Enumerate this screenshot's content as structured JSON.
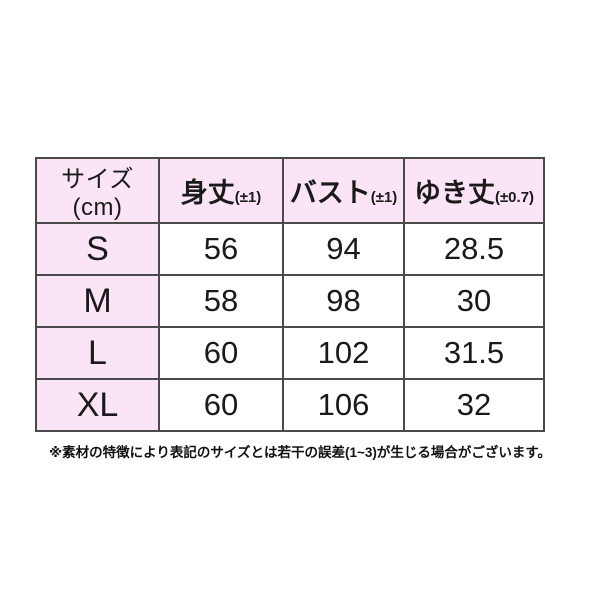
{
  "table": {
    "headers": [
      {
        "label": "サイズ(cm)",
        "tolerance": ""
      },
      {
        "label": "身丈",
        "tolerance": "(±1)"
      },
      {
        "label": "バスト",
        "tolerance": "(±1)"
      },
      {
        "label": "ゆき丈",
        "tolerance": "(±0.7)"
      }
    ],
    "rows": [
      {
        "size": "S",
        "values": [
          "56",
          "94",
          "28.5"
        ]
      },
      {
        "size": "M",
        "values": [
          "58",
          "98",
          "30"
        ]
      },
      {
        "size": "L",
        "values": [
          "60",
          "102",
          "31.5"
        ]
      },
      {
        "size": "XL",
        "values": [
          "60",
          "106",
          "32"
        ]
      }
    ]
  },
  "note": "※素材の特徴により表記のサイズとは若干の誤差(1~3)が生じる場合がございます。",
  "colors": {
    "header_bg": "#fbe4f6",
    "border_outer": "#151515",
    "border_inner": "#4a4a4a",
    "text": "#1a1a1a"
  }
}
